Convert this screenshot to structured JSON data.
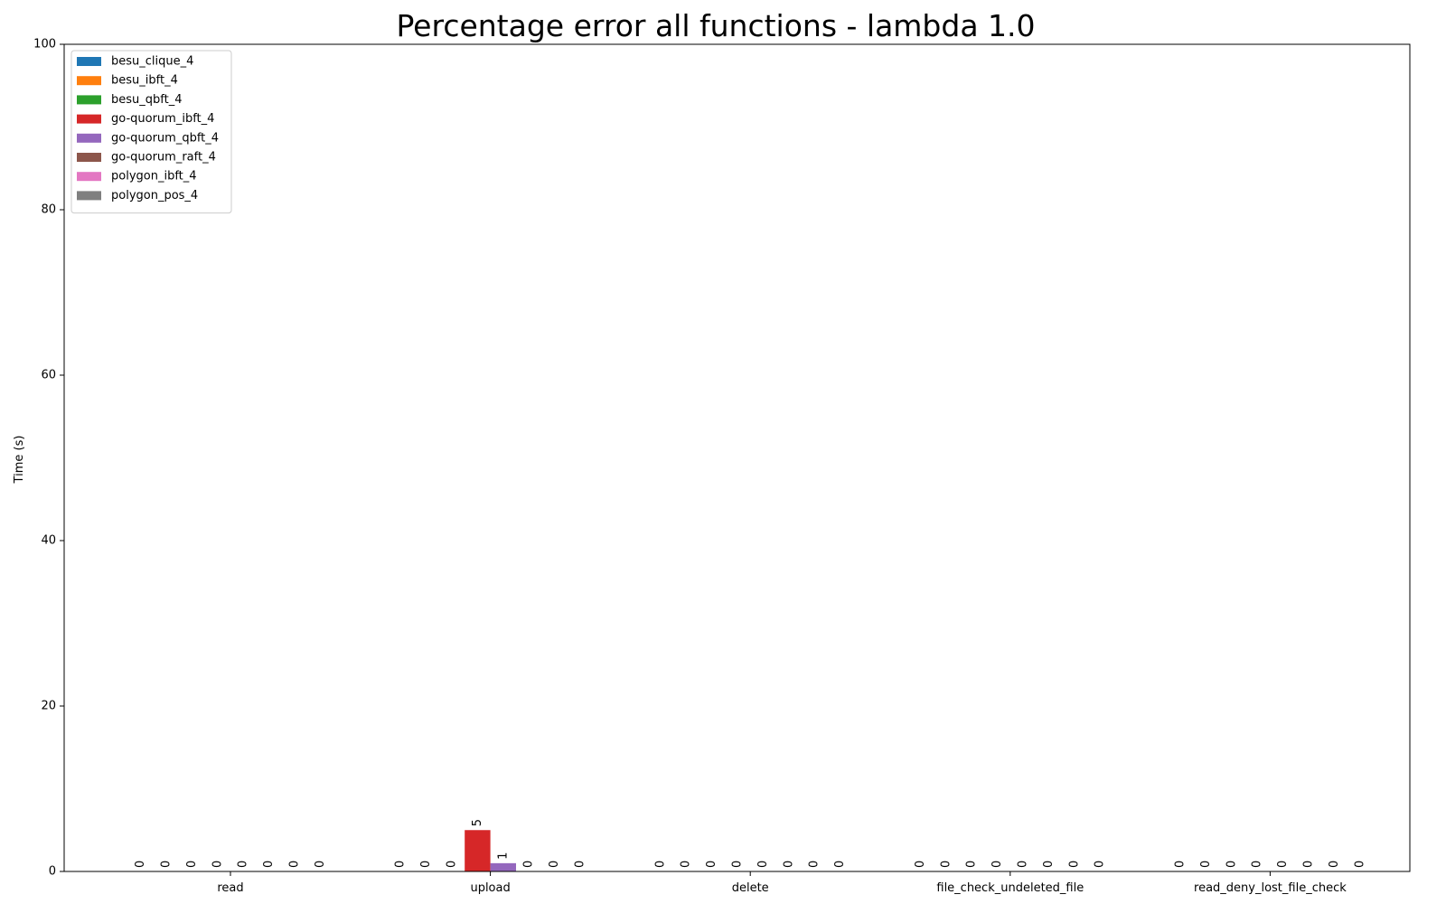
{
  "chart_data": {
    "type": "bar",
    "title": "Percentage error all functions - lambda 1.0",
    "xlabel": "",
    "ylabel": "Time (s)",
    "ylim": [
      0,
      100
    ],
    "yticks": [
      0,
      20,
      40,
      60,
      80,
      100
    ],
    "grid": false,
    "legend_position": "upper-left",
    "categories": [
      "read",
      "upload",
      "delete",
      "file_check_undeleted_file",
      "read_deny_lost_file_check"
    ],
    "series": [
      {
        "name": "besu_clique_4",
        "color": "#1f77b4",
        "values": [
          0,
          0,
          0,
          0,
          0
        ]
      },
      {
        "name": "besu_ibft_4",
        "color": "#ff7f0e",
        "values": [
          0,
          0,
          0,
          0,
          0
        ]
      },
      {
        "name": "besu_qbft_4",
        "color": "#2ca02c",
        "values": [
          0,
          0,
          0,
          0,
          0
        ]
      },
      {
        "name": "go-quorum_ibft_4",
        "color": "#d62728",
        "values": [
          0,
          5,
          0,
          0,
          0
        ]
      },
      {
        "name": "go-quorum_qbft_4",
        "color": "#9467bd",
        "values": [
          0,
          1,
          0,
          0,
          0
        ]
      },
      {
        "name": "go-quorum_raft_4",
        "color": "#8c564b",
        "values": [
          0,
          0,
          0,
          0,
          0
        ]
      },
      {
        "name": "polygon_ibft_4",
        "color": "#e377c2",
        "values": [
          0,
          0,
          0,
          0,
          0
        ]
      },
      {
        "name": "polygon_pos_4",
        "color": "#7f7f7f",
        "values": [
          0,
          0,
          0,
          0,
          0
        ]
      }
    ]
  }
}
